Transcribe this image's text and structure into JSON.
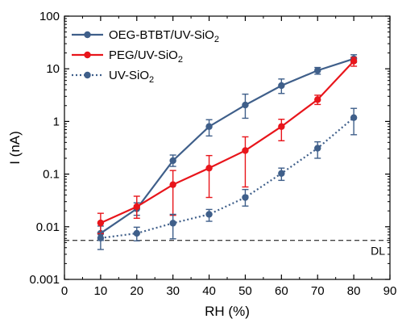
{
  "chart_data": {
    "type": "line",
    "xlabel": "RH (%)",
    "ylabel": "I (nA)",
    "xlim": [
      0,
      90
    ],
    "ylim": [
      0.001,
      100
    ],
    "yscale": "log",
    "xticks": [
      "0",
      "10",
      "20",
      "30",
      "40",
      "50",
      "60",
      "70",
      "80",
      "90"
    ],
    "xtick_values": [
      0,
      10,
      20,
      30,
      40,
      50,
      60,
      70,
      80,
      90
    ],
    "yticks": [
      "0.001",
      "0.01",
      "0.1",
      "1",
      "10",
      "100"
    ],
    "ytick_values": [
      0.001,
      0.01,
      0.1,
      1,
      10,
      100
    ],
    "grid": false,
    "legend_position": "top-left",
    "x": [
      10,
      20,
      30,
      40,
      50,
      60,
      70,
      80
    ],
    "series": [
      {
        "name_main": "OEG-BTBT/UV-SiO",
        "name_sub": "2",
        "color": "#3F5F8A",
        "linestyle": "solid",
        "values": [
          0.0075,
          0.022,
          0.18,
          0.8,
          2.05,
          4.8,
          9.3,
          15.5
        ],
        "err_low": [
          0.0055,
          0.0165,
          0.14,
          0.53,
          1.15,
          3.4,
          7.9,
          13.2
        ],
        "err_high": [
          0.0103,
          0.0285,
          0.23,
          1.08,
          3.3,
          6.4,
          10.6,
          18.5
        ]
      },
      {
        "name_main": "PEG/UV-SiO",
        "name_sub": "2",
        "color": "#E8151B",
        "linestyle": "solid",
        "values": [
          0.0118,
          0.024,
          0.063,
          0.13,
          0.28,
          0.8,
          2.6,
          14.0
        ],
        "err_low": [
          0.0074,
          0.0145,
          0.0165,
          0.036,
          0.057,
          0.43,
          2.1,
          11.2
        ],
        "err_high": [
          0.018,
          0.038,
          0.117,
          0.225,
          0.51,
          1.1,
          3.15,
          16.5
        ]
      },
      {
        "name_main": "UV-SiO",
        "name_sub": "2",
        "color": "#3F5F8A",
        "linestyle": "dotted",
        "values": [
          0.0061,
          0.0075,
          0.0117,
          0.0172,
          0.036,
          0.103,
          0.31,
          1.18
        ],
        "err_low": [
          0.0037,
          0.0054,
          0.0059,
          0.0127,
          0.0247,
          0.076,
          0.2,
          0.56
        ],
        "err_high": [
          0.0078,
          0.0098,
          0.0172,
          0.0213,
          0.051,
          0.13,
          0.41,
          1.77
        ]
      }
    ],
    "reference_line": {
      "label": "DL",
      "value": 0.0055,
      "linestyle": "dashed",
      "color": "#000000"
    }
  }
}
